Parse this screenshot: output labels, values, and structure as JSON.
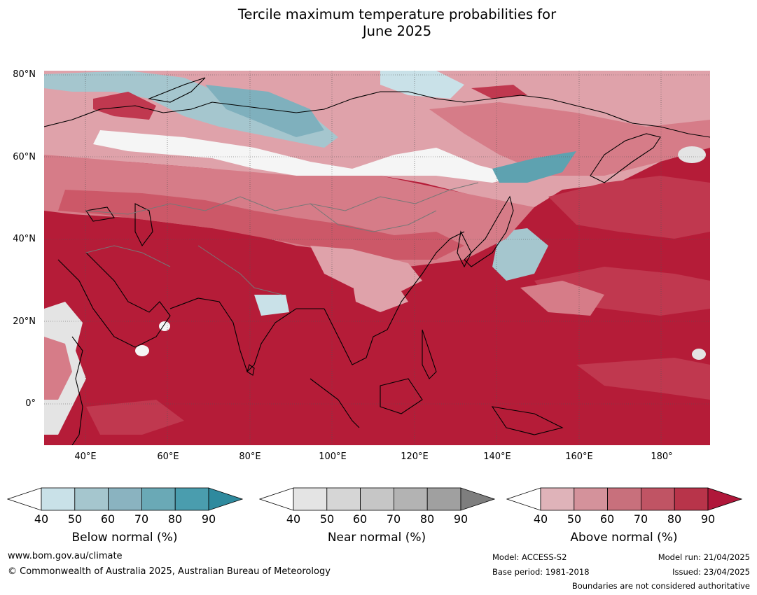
{
  "title_line1": "Tercile maximum temperature probabilities for",
  "title_line2": "June 2025",
  "map": {
    "lat_labels": [
      "80°N",
      "60°N",
      "40°N",
      "20°N",
      "0°"
    ],
    "lon_labels": [
      "40°E",
      "60°E",
      "80°E",
      "100°E",
      "120°E",
      "140°E",
      "160°E",
      "180°"
    ],
    "colors": {
      "ocean_above_90": "#b51c38",
      "above_80": "#c0384f",
      "above_70": "#cc5868",
      "above_60": "#d67c88",
      "above_50": "#dfa2aa",
      "below_50": "#c9e1e8",
      "below_60": "#a5c6ce",
      "below_70": "#7fb0bd",
      "below_80": "#5ea2b0",
      "near_50": "#e4e4e4"
    }
  },
  "colorbars": [
    {
      "title": "Below normal (%)",
      "ticks": [
        "40",
        "50",
        "60",
        "70",
        "80",
        "90"
      ],
      "colors": [
        "#ffffff",
        "#c9e1e8",
        "#a5c6ce",
        "#8ab3c0",
        "#6aa9b6",
        "#4a9dae",
        "#2f8a9e"
      ]
    },
    {
      "title": "Near normal (%)",
      "ticks": [
        "40",
        "50",
        "60",
        "70",
        "80",
        "90"
      ],
      "colors": [
        "#ffffff",
        "#e4e4e4",
        "#d6d6d6",
        "#c6c6c6",
        "#b3b3b3",
        "#a0a0a0",
        "#7e7e7e"
      ]
    },
    {
      "title": "Above normal (%)",
      "ticks": [
        "40",
        "50",
        "60",
        "70",
        "80",
        "90"
      ],
      "colors": [
        "#ffffff",
        "#dfb3b9",
        "#d4929b",
        "#c8707c",
        "#c05464",
        "#b8344a",
        "#b0173a"
      ]
    }
  ],
  "footer": {
    "website": "www.bom.gov.au/climate",
    "copyright": "© Commonwealth of Australia 2025, Australian Bureau of Meteorology",
    "model": "Model: ACCESS-S2",
    "base_period": "Base period: 1981-2018",
    "model_run": "Model run: 21/04/2025",
    "issued": "Issued: 23/04/2025",
    "boundaries_note": "Boundaries are not considered authoritative"
  }
}
